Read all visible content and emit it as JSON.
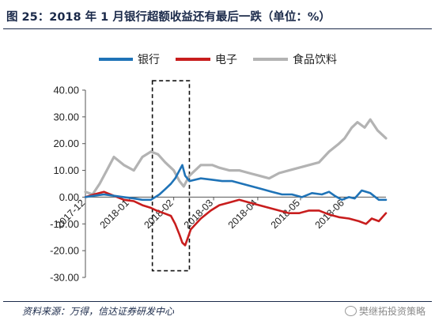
{
  "figure": {
    "title": "图 25：2018 年 1 月银行超额收益还有最后一跌（单位：%）",
    "source": "资料来源：万得，信达证券研发中心",
    "watermark": "樊继拓投资策略"
  },
  "chart_data": {
    "type": "line",
    "title": "",
    "xlabel": "",
    "ylabel": "",
    "ylim": [
      -30,
      40
    ],
    "yticks": [
      "40.00",
      "30.00",
      "20.00",
      "10.00",
      "0.00",
      "-10.00",
      "-20.00",
      "-30.00"
    ],
    "xlim": [
      "2017-12-01",
      "2018-06-30"
    ],
    "xticks": [
      {
        "date": "2017-12-01",
        "label": "2017-12"
      },
      {
        "date": "2018-01-01",
        "label": "2018-01"
      },
      {
        "date": "2018-02-01",
        "label": "2018-02"
      },
      {
        "date": "2018-03-01",
        "label": "2018-03"
      },
      {
        "date": "2018-04-01",
        "label": "2018-04"
      },
      {
        "date": "2018-05-01",
        "label": "2018-05"
      },
      {
        "date": "2018-06-01",
        "label": "2018-06"
      }
    ],
    "grid": false,
    "legend": "top",
    "highlight": {
      "x_from": "2018-01-17",
      "x_to": "2018-02-12",
      "y_from": -27.5,
      "y_to": 43.5,
      "style": "dashed-box"
    },
    "series": [
      {
        "name": "银行",
        "color": "#1f73b7",
        "points": [
          [
            "2017-12-01",
            0
          ],
          [
            "2017-12-07",
            0.5
          ],
          [
            "2017-12-14",
            1
          ],
          [
            "2017-12-21",
            0.5
          ],
          [
            "2017-12-28",
            0
          ],
          [
            "2018-01-04",
            -0.5
          ],
          [
            "2018-01-10",
            -1
          ],
          [
            "2018-01-16",
            -1
          ],
          [
            "2018-01-22",
            1
          ],
          [
            "2018-01-26",
            3
          ],
          [
            "2018-01-30",
            5
          ],
          [
            "2018-02-02",
            7
          ],
          [
            "2018-02-05",
            10
          ],
          [
            "2018-02-07",
            12
          ],
          [
            "2018-02-09",
            8
          ],
          [
            "2018-02-12",
            6
          ],
          [
            "2018-02-20",
            7
          ],
          [
            "2018-02-28",
            6.5
          ],
          [
            "2018-03-07",
            6
          ],
          [
            "2018-03-14",
            6
          ],
          [
            "2018-03-21",
            5
          ],
          [
            "2018-03-28",
            4
          ],
          [
            "2018-04-04",
            3
          ],
          [
            "2018-04-11",
            2
          ],
          [
            "2018-04-18",
            1
          ],
          [
            "2018-04-25",
            1
          ],
          [
            "2018-05-02",
            0
          ],
          [
            "2018-05-09",
            1.5
          ],
          [
            "2018-05-16",
            1
          ],
          [
            "2018-05-21",
            2
          ],
          [
            "2018-05-25",
            0.5
          ],
          [
            "2018-05-30",
            -1
          ],
          [
            "2018-06-04",
            0
          ],
          [
            "2018-06-08",
            -0.5
          ],
          [
            "2018-06-13",
            2.5
          ],
          [
            "2018-06-19",
            1.5
          ],
          [
            "2018-06-25",
            -1
          ],
          [
            "2018-06-30",
            -1
          ]
        ]
      },
      {
        "name": "电子",
        "color": "#c81d1d",
        "points": [
          [
            "2017-12-01",
            0
          ],
          [
            "2017-12-07",
            1
          ],
          [
            "2017-12-14",
            2
          ],
          [
            "2017-12-21",
            0.5
          ],
          [
            "2017-12-28",
            -1
          ],
          [
            "2018-01-04",
            -1.5
          ],
          [
            "2018-01-10",
            -3
          ],
          [
            "2018-01-16",
            -4
          ],
          [
            "2018-01-20",
            -5
          ],
          [
            "2018-01-25",
            -6
          ],
          [
            "2018-01-30",
            -7
          ],
          [
            "2018-02-02",
            -10
          ],
          [
            "2018-02-05",
            -14
          ],
          [
            "2018-02-07",
            -17
          ],
          [
            "2018-02-09",
            -18
          ],
          [
            "2018-02-13",
            -12
          ],
          [
            "2018-02-20",
            -8
          ],
          [
            "2018-02-27",
            -5
          ],
          [
            "2018-03-05",
            -3
          ],
          [
            "2018-03-12",
            -2
          ],
          [
            "2018-03-19",
            -1
          ],
          [
            "2018-03-26",
            -2
          ],
          [
            "2018-04-02",
            -3
          ],
          [
            "2018-04-09",
            -4
          ],
          [
            "2018-04-16",
            -5
          ],
          [
            "2018-04-23",
            -6
          ],
          [
            "2018-04-30",
            -6
          ],
          [
            "2018-05-07",
            -5
          ],
          [
            "2018-05-14",
            -5
          ],
          [
            "2018-05-21",
            -6.5
          ],
          [
            "2018-05-28",
            -7.5
          ],
          [
            "2018-06-04",
            -8
          ],
          [
            "2018-06-11",
            -9
          ],
          [
            "2018-06-16",
            -10
          ],
          [
            "2018-06-20",
            -8
          ],
          [
            "2018-06-25",
            -9
          ],
          [
            "2018-06-30",
            -6
          ]
        ]
      },
      {
        "name": "食品饮料",
        "color": "#b3b3b3",
        "points": [
          [
            "2017-12-01",
            2
          ],
          [
            "2017-12-06",
            1
          ],
          [
            "2017-12-11",
            5
          ],
          [
            "2017-12-16",
            10
          ],
          [
            "2017-12-21",
            15
          ],
          [
            "2017-12-28",
            12
          ],
          [
            "2018-01-04",
            10
          ],
          [
            "2018-01-10",
            15
          ],
          [
            "2018-01-16",
            17
          ],
          [
            "2018-01-21",
            16
          ],
          [
            "2018-01-26",
            13
          ],
          [
            "2018-02-01",
            10
          ],
          [
            "2018-02-05",
            6
          ],
          [
            "2018-02-08",
            4
          ],
          [
            "2018-02-12",
            8
          ],
          [
            "2018-02-20",
            12
          ],
          [
            "2018-02-28",
            12
          ],
          [
            "2018-03-05",
            11
          ],
          [
            "2018-03-12",
            10
          ],
          [
            "2018-03-19",
            10
          ],
          [
            "2018-03-26",
            9
          ],
          [
            "2018-04-02",
            8
          ],
          [
            "2018-04-09",
            7
          ],
          [
            "2018-04-16",
            9
          ],
          [
            "2018-04-23",
            10
          ],
          [
            "2018-04-30",
            11
          ],
          [
            "2018-05-07",
            12
          ],
          [
            "2018-05-14",
            13
          ],
          [
            "2018-05-21",
            17
          ],
          [
            "2018-05-28",
            20
          ],
          [
            "2018-06-01",
            22
          ],
          [
            "2018-06-06",
            26
          ],
          [
            "2018-06-10",
            28
          ],
          [
            "2018-06-15",
            26
          ],
          [
            "2018-06-19",
            29
          ],
          [
            "2018-06-24",
            25
          ],
          [
            "2018-06-28",
            23
          ],
          [
            "2018-06-30",
            22
          ]
        ]
      }
    ]
  }
}
